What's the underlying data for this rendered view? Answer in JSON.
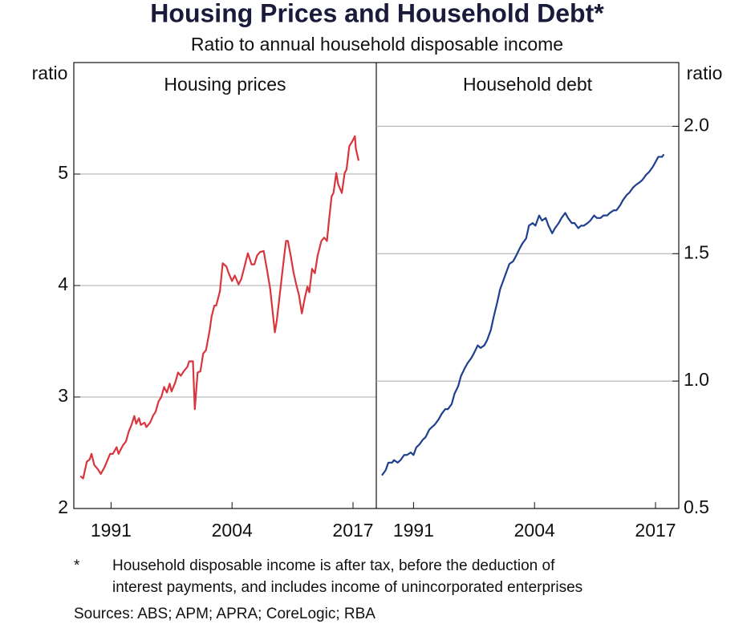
{
  "title": "Housing Prices and Household Debt*",
  "subtitle": "Ratio to annual household disposable income",
  "footnote": {
    "marker": "*",
    "lines": [
      "Household disposable income is after tax, before the deduction of",
      "interest payments, and includes income of unincorporated enterprises"
    ]
  },
  "sources": "Sources: ABS; APM; APRA; CoreLogic; RBA",
  "chart_data": [
    {
      "type": "line",
      "title": "Housing prices",
      "ylabel": "ratio",
      "yaxis": "left",
      "grid": true,
      "xlim": [
        1987,
        2019.5
      ],
      "xticks": [
        1991,
        2004,
        2017
      ],
      "ylim": [
        2,
        6
      ],
      "yticks": [
        2,
        3,
        4,
        5
      ],
      "x": [
        1987.7,
        1988.0,
        1988.4,
        1988.7,
        1988.9,
        1989.2,
        1989.6,
        1989.9,
        1990.3,
        1990.9,
        1991.2,
        1991.6,
        1991.8,
        1992.3,
        1992.6,
        1992.9,
        1993.2,
        1993.5,
        1993.7,
        1994.0,
        1994.2,
        1994.6,
        1994.8,
        1995.2,
        1995.5,
        1995.8,
        1996.1,
        1996.4,
        1996.7,
        1997.0,
        1997.3,
        1997.5,
        1997.9,
        1998.2,
        1998.5,
        1998.8,
        1999.2,
        1999.4,
        1999.8,
        2000.0,
        2000.3,
        2000.6,
        2000.9,
        2001.2,
        2001.6,
        2001.8,
        2002.1,
        2002.3,
        2002.7,
        2003.0,
        2003.4,
        2003.6,
        2004.0,
        2004.3,
        2004.7,
        2005.0,
        2005.4,
        2005.7,
        2006.1,
        2006.4,
        2006.7,
        2007.0,
        2007.4,
        2007.8,
        2008.1,
        2008.6,
        2008.8,
        2009.2,
        2009.5,
        2009.8,
        2010.0,
        2010.3,
        2010.6,
        2010.9,
        2011.2,
        2011.5,
        2011.8,
        2012.1,
        2012.3,
        2012.6,
        2012.9,
        2013.2,
        2013.6,
        2013.9,
        2014.2,
        2014.4,
        2014.7,
        2014.9,
        2015.2,
        2015.4,
        2015.8,
        2016.1,
        2016.3,
        2016.6,
        2016.9,
        2017.2,
        2017.3,
        2017.6
      ],
      "series": [
        {
          "color": "#d9353f",
          "values": [
            2.29,
            2.27,
            2.42,
            2.44,
            2.49,
            2.39,
            2.35,
            2.31,
            2.37,
            2.49,
            2.49,
            2.55,
            2.49,
            2.57,
            2.6,
            2.69,
            2.75,
            2.83,
            2.76,
            2.81,
            2.75,
            2.77,
            2.73,
            2.77,
            2.83,
            2.87,
            2.96,
            3.0,
            3.09,
            3.04,
            3.12,
            3.05,
            3.13,
            3.22,
            3.19,
            3.23,
            3.27,
            3.32,
            3.32,
            2.89,
            3.22,
            3.23,
            3.39,
            3.42,
            3.6,
            3.72,
            3.82,
            3.82,
            3.95,
            4.2,
            4.17,
            4.12,
            4.04,
            4.09,
            4.01,
            4.06,
            4.19,
            4.29,
            4.19,
            4.19,
            4.27,
            4.3,
            4.31,
            4.12,
            3.97,
            3.58,
            3.68,
            3.97,
            4.19,
            4.4,
            4.4,
            4.27,
            4.12,
            4.01,
            3.91,
            3.75,
            3.88,
            3.99,
            3.94,
            4.15,
            4.11,
            4.27,
            4.4,
            4.43,
            4.4,
            4.57,
            4.8,
            4.83,
            5.01,
            4.91,
            4.83,
            5.01,
            5.04,
            5.25,
            5.29,
            5.34,
            5.23,
            5.12
          ]
        }
      ]
    },
    {
      "type": "line",
      "title": "Household debt",
      "ylabel": "ratio",
      "yaxis": "right",
      "grid": true,
      "xlim": [
        1987,
        2019.5
      ],
      "xticks": [
        1991,
        2004,
        2017
      ],
      "ylim": [
        0.5,
        2.25
      ],
      "yticks": [
        0.5,
        {
          "value": 1,
          "label": "1.0"
        },
        1.5,
        {
          "value": 2,
          "label": "2.0"
        }
      ],
      "x": [
        1987.6,
        1988.0,
        1988.3,
        1988.7,
        1988.9,
        1989.3,
        1989.6,
        1990.0,
        1990.3,
        1990.7,
        1991.0,
        1991.3,
        1991.6,
        1992.0,
        1992.3,
        1992.7,
        1993.0,
        1993.3,
        1993.7,
        1994.0,
        1994.4,
        1994.7,
        1995.1,
        1995.4,
        1995.8,
        1996.1,
        1996.5,
        1996.8,
        1997.2,
        1997.5,
        1997.9,
        1998.2,
        1998.6,
        1998.9,
        1999.3,
        1999.6,
        2000.0,
        2000.3,
        2000.7,
        2001.0,
        2001.3,
        2001.7,
        2002.0,
        2002.4,
        2002.7,
        2003.1,
        2003.4,
        2003.8,
        2004.1,
        2004.5,
        2004.8,
        2005.2,
        2005.5,
        2005.9,
        2006.2,
        2006.6,
        2006.9,
        2007.3,
        2007.6,
        2008.0,
        2008.3,
        2008.7,
        2009.0,
        2009.3,
        2009.7,
        2010.0,
        2010.4,
        2010.7,
        2011.1,
        2011.4,
        2011.8,
        2012.1,
        2012.5,
        2012.8,
        2013.2,
        2013.5,
        2013.9,
        2014.2,
        2014.6,
        2014.9,
        2015.3,
        2015.6,
        2016.0,
        2016.3,
        2016.7,
        2017.0,
        2017.3,
        2017.7,
        2017.9
      ],
      "series": [
        {
          "color": "#1f3f8f",
          "values": [
            0.63,
            0.65,
            0.68,
            0.68,
            0.69,
            0.68,
            0.69,
            0.71,
            0.71,
            0.72,
            0.71,
            0.74,
            0.75,
            0.77,
            0.78,
            0.81,
            0.82,
            0.83,
            0.85,
            0.87,
            0.89,
            0.89,
            0.91,
            0.95,
            0.98,
            1.02,
            1.05,
            1.07,
            1.09,
            1.11,
            1.14,
            1.13,
            1.14,
            1.16,
            1.2,
            1.25,
            1.31,
            1.36,
            1.4,
            1.43,
            1.46,
            1.47,
            1.49,
            1.52,
            1.54,
            1.56,
            1.61,
            1.62,
            1.61,
            1.65,
            1.63,
            1.64,
            1.61,
            1.58,
            1.6,
            1.62,
            1.64,
            1.66,
            1.64,
            1.62,
            1.62,
            1.6,
            1.61,
            1.61,
            1.62,
            1.63,
            1.65,
            1.64,
            1.64,
            1.65,
            1.65,
            1.66,
            1.67,
            1.67,
            1.69,
            1.71,
            1.73,
            1.74,
            1.76,
            1.77,
            1.78,
            1.79,
            1.81,
            1.82,
            1.84,
            1.86,
            1.88,
            1.88,
            1.89
          ]
        }
      ]
    }
  ]
}
